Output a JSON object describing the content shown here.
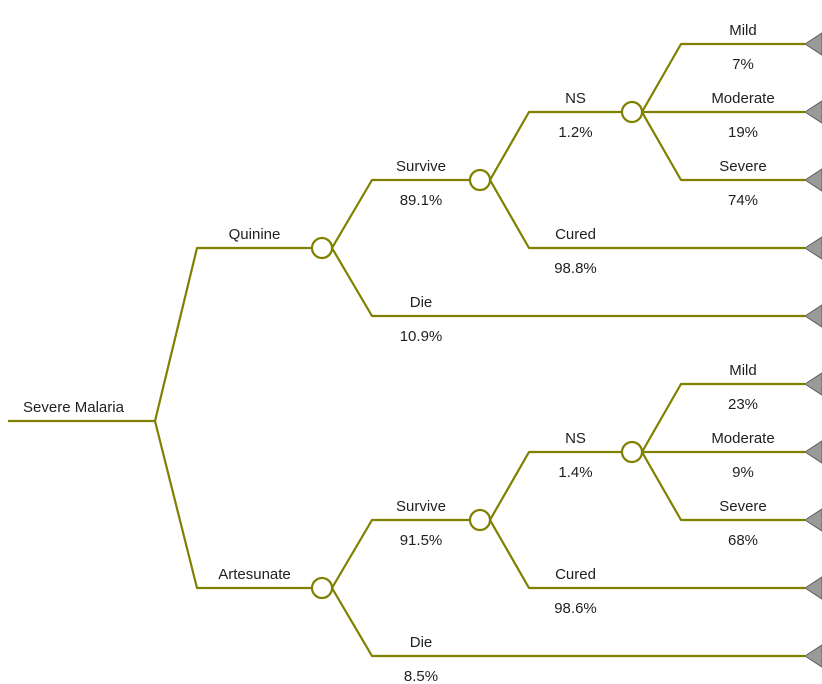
{
  "diagram": {
    "type": "decision-tree",
    "colors": {
      "edge": "#808000",
      "chance_node_fill": "#ffffff",
      "terminal_fill": "#9a9a9a",
      "text": "#1f1f1f"
    },
    "root": {
      "label": "Severe Malaria",
      "node": "decision",
      "children": [
        {
          "label": "Quinine",
          "node": "chance",
          "children": [
            {
              "label": "Survive",
              "prob": "89.1%",
              "node": "chance",
              "children": [
                {
                  "label": "NS",
                  "prob": "1.2%",
                  "node": "chance",
                  "children": [
                    {
                      "label": "Mild",
                      "prob": "7%",
                      "node": "terminal"
                    },
                    {
                      "label": "Moderate",
                      "prob": "19%",
                      "node": "terminal"
                    },
                    {
                      "label": "Severe",
                      "prob": "74%",
                      "node": "terminal"
                    }
                  ]
                },
                {
                  "label": "Cured",
                  "prob": "98.8%",
                  "node": "terminal"
                }
              ]
            },
            {
              "label": "Die",
              "prob": "10.9%",
              "node": "terminal"
            }
          ]
        },
        {
          "label": "Artesunate",
          "node": "chance",
          "children": [
            {
              "label": "Survive",
              "prob": "91.5%",
              "node": "chance",
              "children": [
                {
                  "label": "NS",
                  "prob": "1.4%",
                  "node": "chance",
                  "children": [
                    {
                      "label": "Mild",
                      "prob": "23%",
                      "node": "terminal"
                    },
                    {
                      "label": "Moderate",
                      "prob": "9%",
                      "node": "terminal"
                    },
                    {
                      "label": "Severe",
                      "prob": "68%",
                      "node": "terminal"
                    }
                  ]
                },
                {
                  "label": "Cured",
                  "prob": "98.6%",
                  "node": "terminal"
                }
              ]
            },
            {
              "label": "Die",
              "prob": "8.5%",
              "node": "terminal"
            }
          ]
        }
      ]
    }
  }
}
